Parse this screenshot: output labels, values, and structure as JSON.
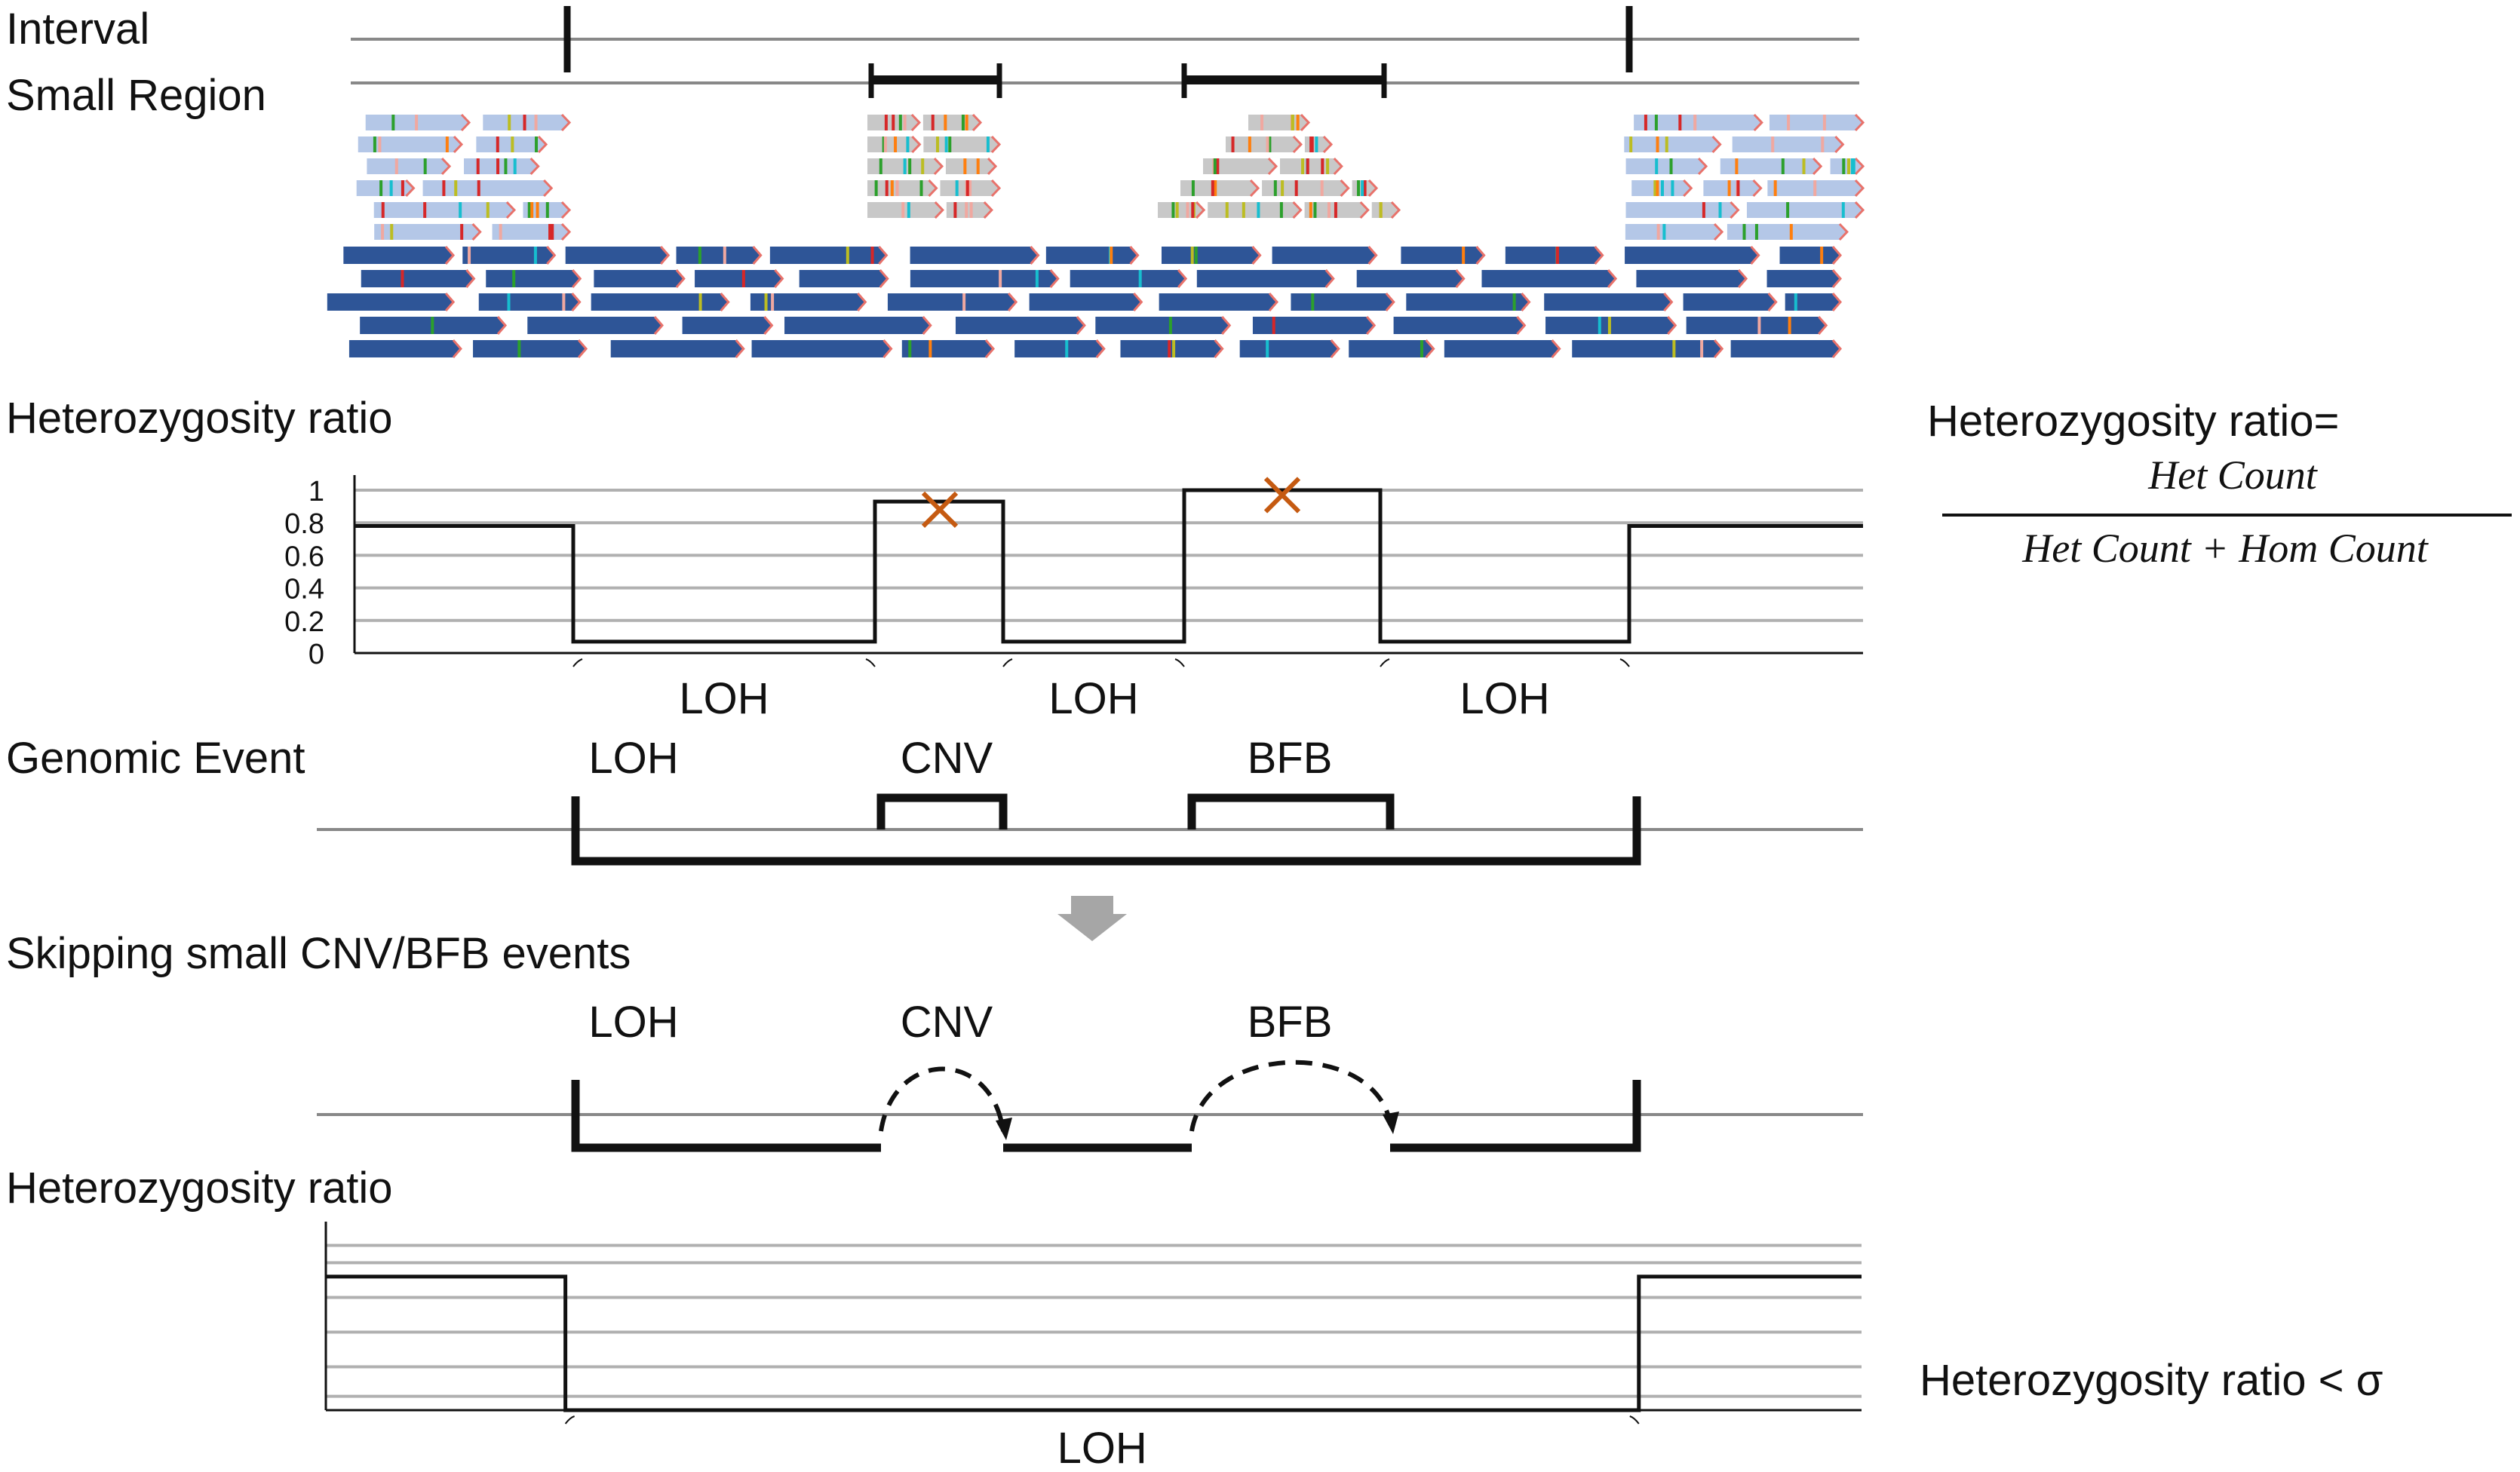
{
  "colors": {
    "read_dark": "#2e5597",
    "read_light": "#b4c7e7",
    "read_gray": "#c8c8c8",
    "read_tip": "#e8726b",
    "grid": "#b0b0b0",
    "line": "#111111",
    "axis_gray": "#888888",
    "marker": "#c55a11",
    "arrow": "#a6a6a6",
    "variant_colors": [
      "#f0a8a0",
      "#d62728",
      "#2ca02c",
      "#17becf",
      "#bcbd22",
      "#ff7f0e"
    ]
  },
  "labels": {
    "interval": "Interval",
    "small_region": "Small Region",
    "het_ratio_1": "Heterozygosity ratio",
    "genomic_event": "Genomic Event",
    "skipping": "Skipping small CNV/BFB events",
    "het_ratio_2": "Heterozygosity ratio"
  },
  "formula": {
    "lhs": "Heterozygosity ratio=",
    "numerator": "Het Count",
    "denominator": "Het Count + Hom  Count"
  },
  "threshold_label": "Heterozygosity ratio < σ",
  "events": {
    "loh": "LOH",
    "cnv": "CNV",
    "bfb": "BFB"
  },
  "skip_events": {
    "loh": "LOH",
    "cnv": "CNV",
    "bfb": "BFB"
  },
  "chart_data": [
    {
      "type": "line",
      "step": true,
      "y_ticks": [
        "1",
        "0.8",
        "0.6",
        "0.4",
        "0.2",
        "0"
      ],
      "ylim": [
        0,
        1
      ],
      "grid": true,
      "series": [
        {
          "points": [
            [
              0.0,
              0.78
            ],
            [
              0.145,
              0.78
            ],
            [
              0.145,
              0.07
            ],
            [
              0.345,
              0.07
            ],
            [
              0.345,
              0.93
            ],
            [
              0.43,
              0.93
            ],
            [
              0.43,
              0.07
            ],
            [
              0.55,
              0.07
            ],
            [
              0.55,
              1.0
            ],
            [
              0.68,
              1.0
            ],
            [
              0.68,
              0.07
            ],
            [
              0.845,
              0.07
            ],
            [
              0.845,
              0.78
            ],
            [
              1.0,
              0.78
            ]
          ]
        }
      ],
      "markers": [
        {
          "x": 0.388,
          "y": 0.88,
          "symbol": "x"
        },
        {
          "x": 0.615,
          "y": 0.97,
          "symbol": "x"
        }
      ],
      "segment_labels": [
        "LOH",
        "LOH",
        "LOH"
      ]
    },
    {
      "type": "line",
      "step": true,
      "grid": true,
      "series": [
        {
          "points": [
            [
              0.0,
              0.77
            ],
            [
              0.156,
              0.77
            ],
            [
              0.156,
              0.0
            ],
            [
              0.855,
              0.0
            ],
            [
              0.855,
              0.77
            ],
            [
              1.0,
              0.77
            ]
          ]
        }
      ],
      "segment_labels": [
        "LOH"
      ]
    }
  ]
}
